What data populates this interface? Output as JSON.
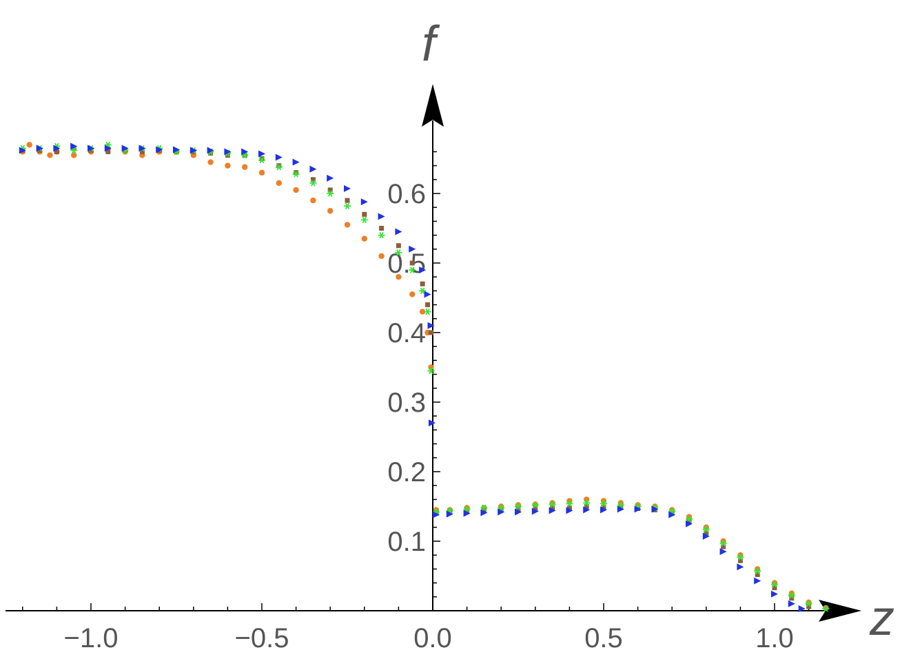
{
  "chart_data": {
    "type": "scatter",
    "title": "",
    "xlabel": "z",
    "ylabel": "f",
    "xlim": [
      -1.24,
      1.25
    ],
    "ylim": [
      0.0,
      0.68
    ],
    "x_ticks": [
      {
        "value": -1.0,
        "label": "−1.0"
      },
      {
        "value": -0.5,
        "label": "−0.5"
      },
      {
        "value": 0.0,
        "label": "0.0"
      },
      {
        "value": 0.5,
        "label": "0.5"
      },
      {
        "value": 1.0,
        "label": "1.0"
      }
    ],
    "y_ticks": [
      {
        "value": 0.1,
        "label": "0.1"
      },
      {
        "value": 0.2,
        "label": "0.2"
      },
      {
        "value": 0.3,
        "label": "0.3"
      },
      {
        "value": 0.4,
        "label": "0.4"
      },
      {
        "value": 0.5,
        "label": "0.5"
      },
      {
        "value": 0.6,
        "label": "0.6"
      }
    ],
    "grid": false,
    "legend": "none",
    "series": [
      {
        "color": "#F07E26",
        "marker": "circle",
        "points": [
          [
            -1.2,
            0.66
          ],
          [
            -1.18,
            0.67
          ],
          [
            -1.15,
            0.66
          ],
          [
            -1.12,
            0.655
          ],
          [
            -1.1,
            0.66
          ],
          [
            -1.05,
            0.655
          ],
          [
            -1.0,
            0.66
          ],
          [
            -0.95,
            0.665
          ],
          [
            -0.9,
            0.66
          ],
          [
            -0.85,
            0.655
          ],
          [
            -0.8,
            0.66
          ],
          [
            -0.75,
            0.66
          ],
          [
            -0.7,
            0.655
          ],
          [
            -0.65,
            0.645
          ],
          [
            -0.6,
            0.64
          ],
          [
            -0.55,
            0.638
          ],
          [
            -0.5,
            0.63
          ],
          [
            -0.45,
            0.615
          ],
          [
            -0.4,
            0.605
          ],
          [
            -0.35,
            0.59
          ],
          [
            -0.3,
            0.575
          ],
          [
            -0.25,
            0.555
          ],
          [
            -0.2,
            0.535
          ],
          [
            -0.15,
            0.51
          ],
          [
            -0.1,
            0.48
          ],
          [
            -0.06,
            0.455
          ],
          [
            -0.03,
            0.43
          ],
          [
            -0.015,
            0.4
          ],
          [
            -0.005,
            0.35
          ],
          [
            0.01,
            0.145
          ],
          [
            0.05,
            0.145
          ],
          [
            0.1,
            0.148
          ],
          [
            0.15,
            0.148
          ],
          [
            0.2,
            0.15
          ],
          [
            0.25,
            0.152
          ],
          [
            0.3,
            0.153
          ],
          [
            0.35,
            0.155
          ],
          [
            0.4,
            0.158
          ],
          [
            0.45,
            0.16
          ],
          [
            0.5,
            0.158
          ],
          [
            0.55,
            0.155
          ],
          [
            0.6,
            0.152
          ],
          [
            0.65,
            0.15
          ],
          [
            0.7,
            0.145
          ],
          [
            0.75,
            0.135
          ],
          [
            0.8,
            0.12
          ],
          [
            0.85,
            0.1
          ],
          [
            0.9,
            0.08
          ],
          [
            0.95,
            0.06
          ],
          [
            1.0,
            0.04
          ],
          [
            1.05,
            0.025
          ],
          [
            1.1,
            0.012
          ],
          [
            1.15,
            0.004
          ]
        ]
      },
      {
        "color": "#8B5E3C",
        "marker": "square",
        "points": [
          [
            -1.2,
            0.662
          ],
          [
            -1.15,
            0.662
          ],
          [
            -1.1,
            0.66
          ],
          [
            -1.05,
            0.665
          ],
          [
            -1.0,
            0.662
          ],
          [
            -0.95,
            0.66
          ],
          [
            -0.9,
            0.662
          ],
          [
            -0.85,
            0.66
          ],
          [
            -0.8,
            0.662
          ],
          [
            -0.75,
            0.66
          ],
          [
            -0.7,
            0.66
          ],
          [
            -0.65,
            0.658
          ],
          [
            -0.6,
            0.655
          ],
          [
            -0.55,
            0.655
          ],
          [
            -0.5,
            0.65
          ],
          [
            -0.45,
            0.64
          ],
          [
            -0.4,
            0.63
          ],
          [
            -0.35,
            0.62
          ],
          [
            -0.3,
            0.605
          ],
          [
            -0.25,
            0.59
          ],
          [
            -0.2,
            0.57
          ],
          [
            -0.15,
            0.55
          ],
          [
            -0.1,
            0.525
          ],
          [
            -0.06,
            0.5
          ],
          [
            -0.03,
            0.47
          ],
          [
            -0.015,
            0.44
          ],
          [
            -0.005,
            0.4
          ],
          [
            0.01,
            0.14
          ],
          [
            0.05,
            0.142
          ],
          [
            0.1,
            0.143
          ],
          [
            0.15,
            0.144
          ],
          [
            0.2,
            0.145
          ],
          [
            0.25,
            0.146
          ],
          [
            0.3,
            0.147
          ],
          [
            0.35,
            0.148
          ],
          [
            0.4,
            0.148
          ],
          [
            0.45,
            0.15
          ],
          [
            0.5,
            0.149
          ],
          [
            0.55,
            0.148
          ],
          [
            0.6,
            0.147
          ],
          [
            0.65,
            0.145
          ],
          [
            0.7,
            0.14
          ],
          [
            0.75,
            0.128
          ],
          [
            0.8,
            0.112
          ],
          [
            0.85,
            0.092
          ],
          [
            0.9,
            0.072
          ],
          [
            0.95,
            0.052
          ],
          [
            1.0,
            0.033
          ],
          [
            1.05,
            0.018
          ],
          [
            1.1,
            0.006
          ]
        ]
      },
      {
        "color": "#33E633",
        "marker": "star",
        "points": [
          [
            -1.2,
            0.665
          ],
          [
            -1.15,
            0.665
          ],
          [
            -1.1,
            0.668
          ],
          [
            -1.05,
            0.662
          ],
          [
            -1.0,
            0.665
          ],
          [
            -0.95,
            0.67
          ],
          [
            -0.9,
            0.662
          ],
          [
            -0.85,
            0.665
          ],
          [
            -0.8,
            0.665
          ],
          [
            -0.75,
            0.66
          ],
          [
            -0.7,
            0.662
          ],
          [
            -0.65,
            0.66
          ],
          [
            -0.6,
            0.658
          ],
          [
            -0.55,
            0.655
          ],
          [
            -0.5,
            0.648
          ],
          [
            -0.45,
            0.638
          ],
          [
            -0.4,
            0.628
          ],
          [
            -0.35,
            0.615
          ],
          [
            -0.3,
            0.6
          ],
          [
            -0.25,
            0.582
          ],
          [
            -0.2,
            0.562
          ],
          [
            -0.15,
            0.54
          ],
          [
            -0.1,
            0.515
          ],
          [
            -0.06,
            0.49
          ],
          [
            -0.03,
            0.46
          ],
          [
            -0.015,
            0.43
          ],
          [
            -0.005,
            0.345
          ],
          [
            0.01,
            0.142
          ],
          [
            0.05,
            0.144
          ],
          [
            0.1,
            0.146
          ],
          [
            0.15,
            0.148
          ],
          [
            0.2,
            0.148
          ],
          [
            0.25,
            0.15
          ],
          [
            0.3,
            0.152
          ],
          [
            0.35,
            0.153
          ],
          [
            0.4,
            0.154
          ],
          [
            0.45,
            0.155
          ],
          [
            0.5,
            0.154
          ],
          [
            0.55,
            0.152
          ],
          [
            0.6,
            0.15
          ],
          [
            0.65,
            0.148
          ],
          [
            0.7,
            0.143
          ],
          [
            0.75,
            0.132
          ],
          [
            0.8,
            0.117
          ],
          [
            0.85,
            0.097
          ],
          [
            0.9,
            0.077
          ],
          [
            0.95,
            0.057
          ],
          [
            1.0,
            0.038
          ],
          [
            1.05,
            0.022
          ],
          [
            1.1,
            0.01
          ],
          [
            1.15,
            0.003
          ]
        ]
      },
      {
        "color": "#1E32E6",
        "marker": "triangle-right",
        "points": [
          [
            -1.2,
            0.662
          ],
          [
            -1.15,
            0.665
          ],
          [
            -1.1,
            0.665
          ],
          [
            -1.05,
            0.668
          ],
          [
            -1.0,
            0.665
          ],
          [
            -0.95,
            0.665
          ],
          [
            -0.9,
            0.665
          ],
          [
            -0.85,
            0.665
          ],
          [
            -0.8,
            0.663
          ],
          [
            -0.75,
            0.663
          ],
          [
            -0.7,
            0.662
          ],
          [
            -0.65,
            0.662
          ],
          [
            -0.6,
            0.66
          ],
          [
            -0.55,
            0.66
          ],
          [
            -0.5,
            0.657
          ],
          [
            -0.45,
            0.652
          ],
          [
            -0.4,
            0.645
          ],
          [
            -0.35,
            0.635
          ],
          [
            -0.3,
            0.622
          ],
          [
            -0.25,
            0.607
          ],
          [
            -0.2,
            0.588
          ],
          [
            -0.15,
            0.567
          ],
          [
            -0.1,
            0.545
          ],
          [
            -0.06,
            0.52
          ],
          [
            -0.03,
            0.49
          ],
          [
            -0.015,
            0.455
          ],
          [
            -0.005,
            0.41
          ],
          [
            -0.002,
            0.27
          ],
          [
            0.01,
            0.138
          ],
          [
            0.05,
            0.139
          ],
          [
            0.1,
            0.14
          ],
          [
            0.15,
            0.141
          ],
          [
            0.2,
            0.142
          ],
          [
            0.25,
            0.142
          ],
          [
            0.3,
            0.143
          ],
          [
            0.35,
            0.144
          ],
          [
            0.4,
            0.144
          ],
          [
            0.45,
            0.145
          ],
          [
            0.5,
            0.145
          ],
          [
            0.55,
            0.146
          ],
          [
            0.6,
            0.146
          ],
          [
            0.65,
            0.146
          ],
          [
            0.7,
            0.138
          ],
          [
            0.75,
            0.125
          ],
          [
            0.8,
            0.107
          ],
          [
            0.85,
            0.085
          ],
          [
            0.9,
            0.063
          ],
          [
            0.95,
            0.043
          ],
          [
            1.0,
            0.024
          ],
          [
            1.05,
            0.01
          ],
          [
            1.08,
            0.003
          ]
        ]
      }
    ]
  }
}
